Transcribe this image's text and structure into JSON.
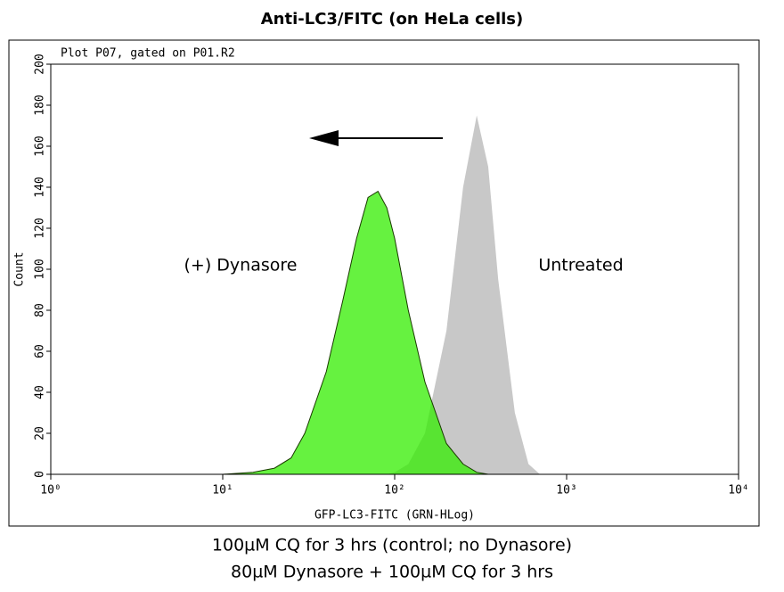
{
  "chart_data": {
    "type": "area",
    "title": "Anti-LC3/FITC (on HeLa cells)",
    "plot_header": "Plot P07, gated on P01.R2",
    "x_label": "GFP-LC3-FITC (GRN-HLog)",
    "y_label": "Count",
    "x_scale": "log",
    "xlim": [
      1,
      10000
    ],
    "xticks": [
      {
        "value": 1,
        "label": "10⁰"
      },
      {
        "value": 10,
        "label": "10¹"
      },
      {
        "value": 100,
        "label": "10²"
      },
      {
        "value": 1000,
        "label": "10³"
      },
      {
        "value": 10000,
        "label": "10⁴"
      }
    ],
    "ylim": [
      0,
      200
    ],
    "yticks": [
      0,
      20,
      40,
      60,
      80,
      100,
      120,
      140,
      160,
      180,
      200
    ],
    "x": [
      10,
      15,
      20,
      25,
      30,
      40,
      50,
      60,
      70,
      80,
      90,
      100,
      120,
      150,
      200,
      250,
      300,
      350,
      400,
      500,
      600,
      700
    ],
    "series": [
      {
        "name": "Untreated",
        "color": "#c8c8c8",
        "values": [
          0,
          0,
          0,
          0,
          0,
          0,
          0,
          0,
          0,
          0,
          0,
          1,
          5,
          20,
          70,
          140,
          175,
          150,
          95,
          30,
          5,
          0
        ]
      },
      {
        "name": "(+) Dynasore",
        "color": "#33ee00",
        "values": [
          0,
          1,
          3,
          8,
          20,
          50,
          85,
          115,
          135,
          138,
          130,
          115,
          80,
          45,
          15,
          5,
          1,
          0,
          0,
          0,
          0,
          0
        ]
      }
    ],
    "captions": [
      "100µM CQ for 3 hrs (control; no Dynasore)",
      "80µM Dynasore + 100µM CQ for 3 hrs"
    ]
  }
}
